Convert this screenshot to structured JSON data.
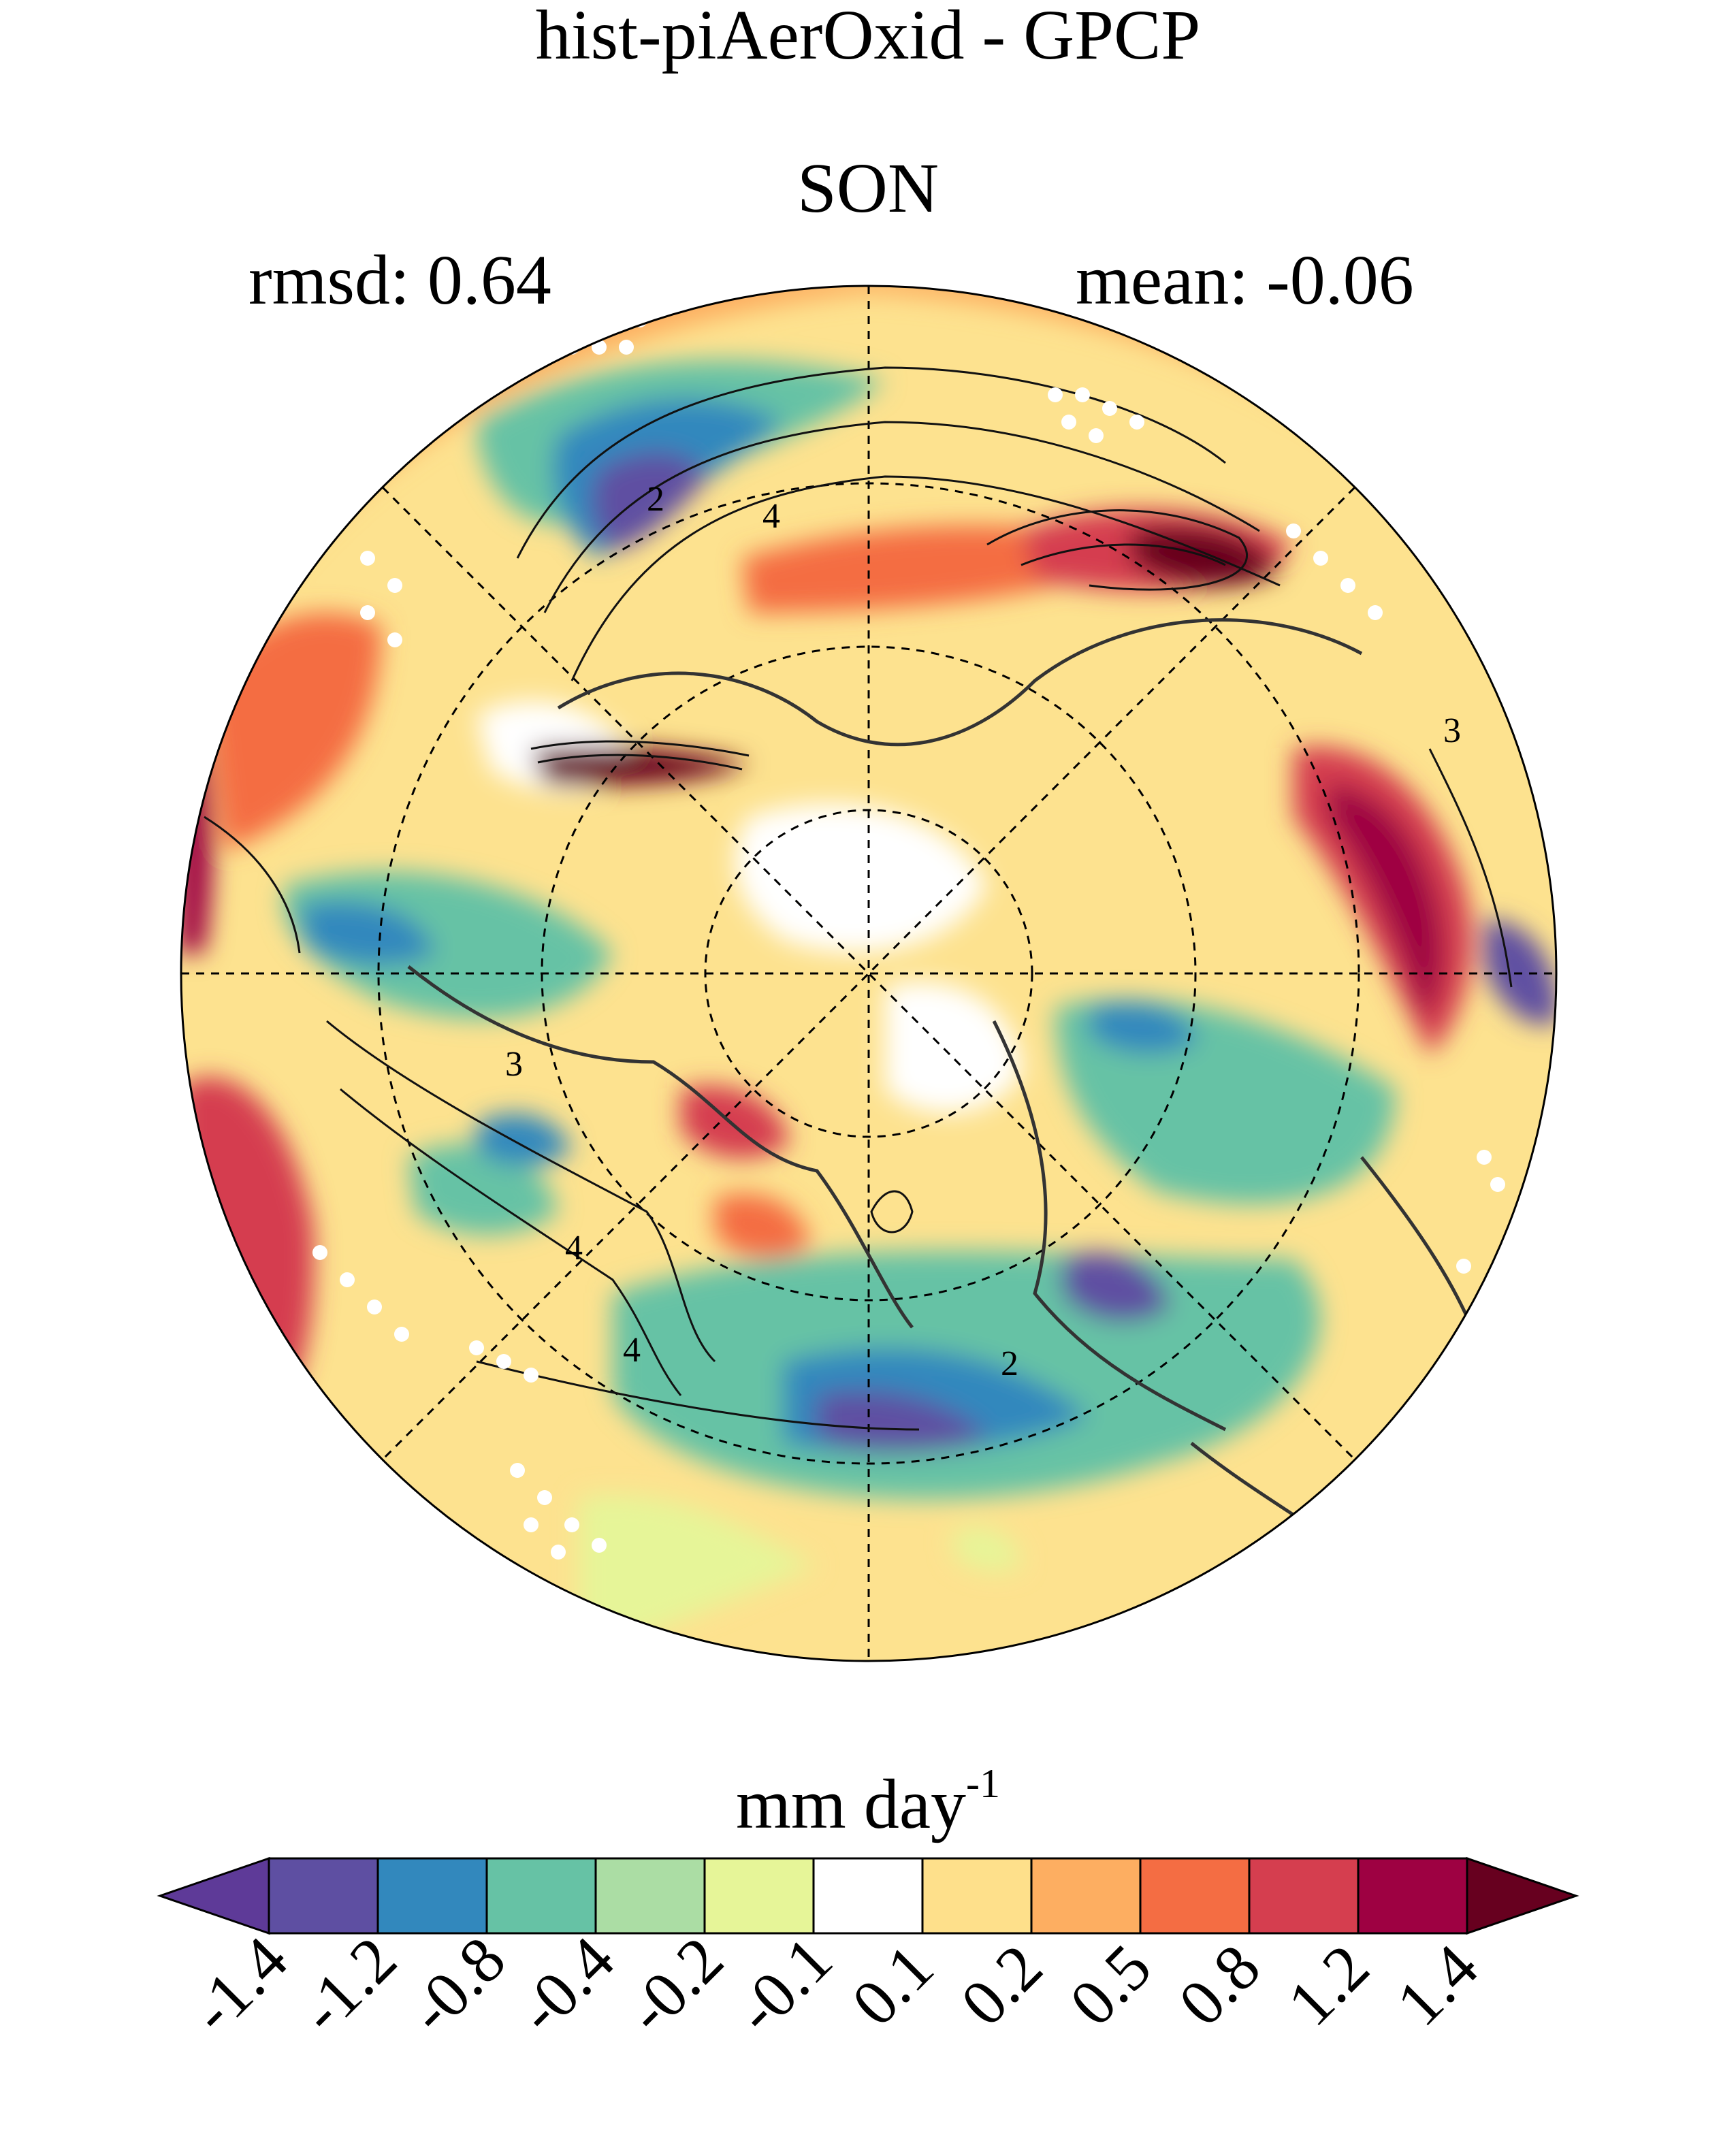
{
  "title": "hist-piAerOxid - GPCP",
  "season": "SON",
  "stats": {
    "rmsd": "rmsd: 0.64",
    "mean": "mean: -0.06"
  },
  "units": {
    "base": "mm day",
    "exponent": "-1"
  },
  "contour_labels": [
    "2",
    "4",
    "3",
    "3",
    "4",
    "4",
    "2"
  ],
  "colorbar": {
    "colors": [
      "#5e3a98",
      "#5e4fa2",
      "#3288bd",
      "#66c2a5",
      "#abdda4",
      "#e6f598",
      "#ffffff",
      "#fee08b",
      "#fdae61",
      "#f46d43",
      "#d53e4f",
      "#9e0142",
      "#67001f"
    ],
    "tick_labels": [
      "-1.4",
      "-1.2",
      "-0.8",
      "-0.4",
      "-0.2",
      "-0.1",
      "0.1",
      "0.2",
      "0.5",
      "0.8",
      "1.2",
      "1.4"
    ]
  }
}
